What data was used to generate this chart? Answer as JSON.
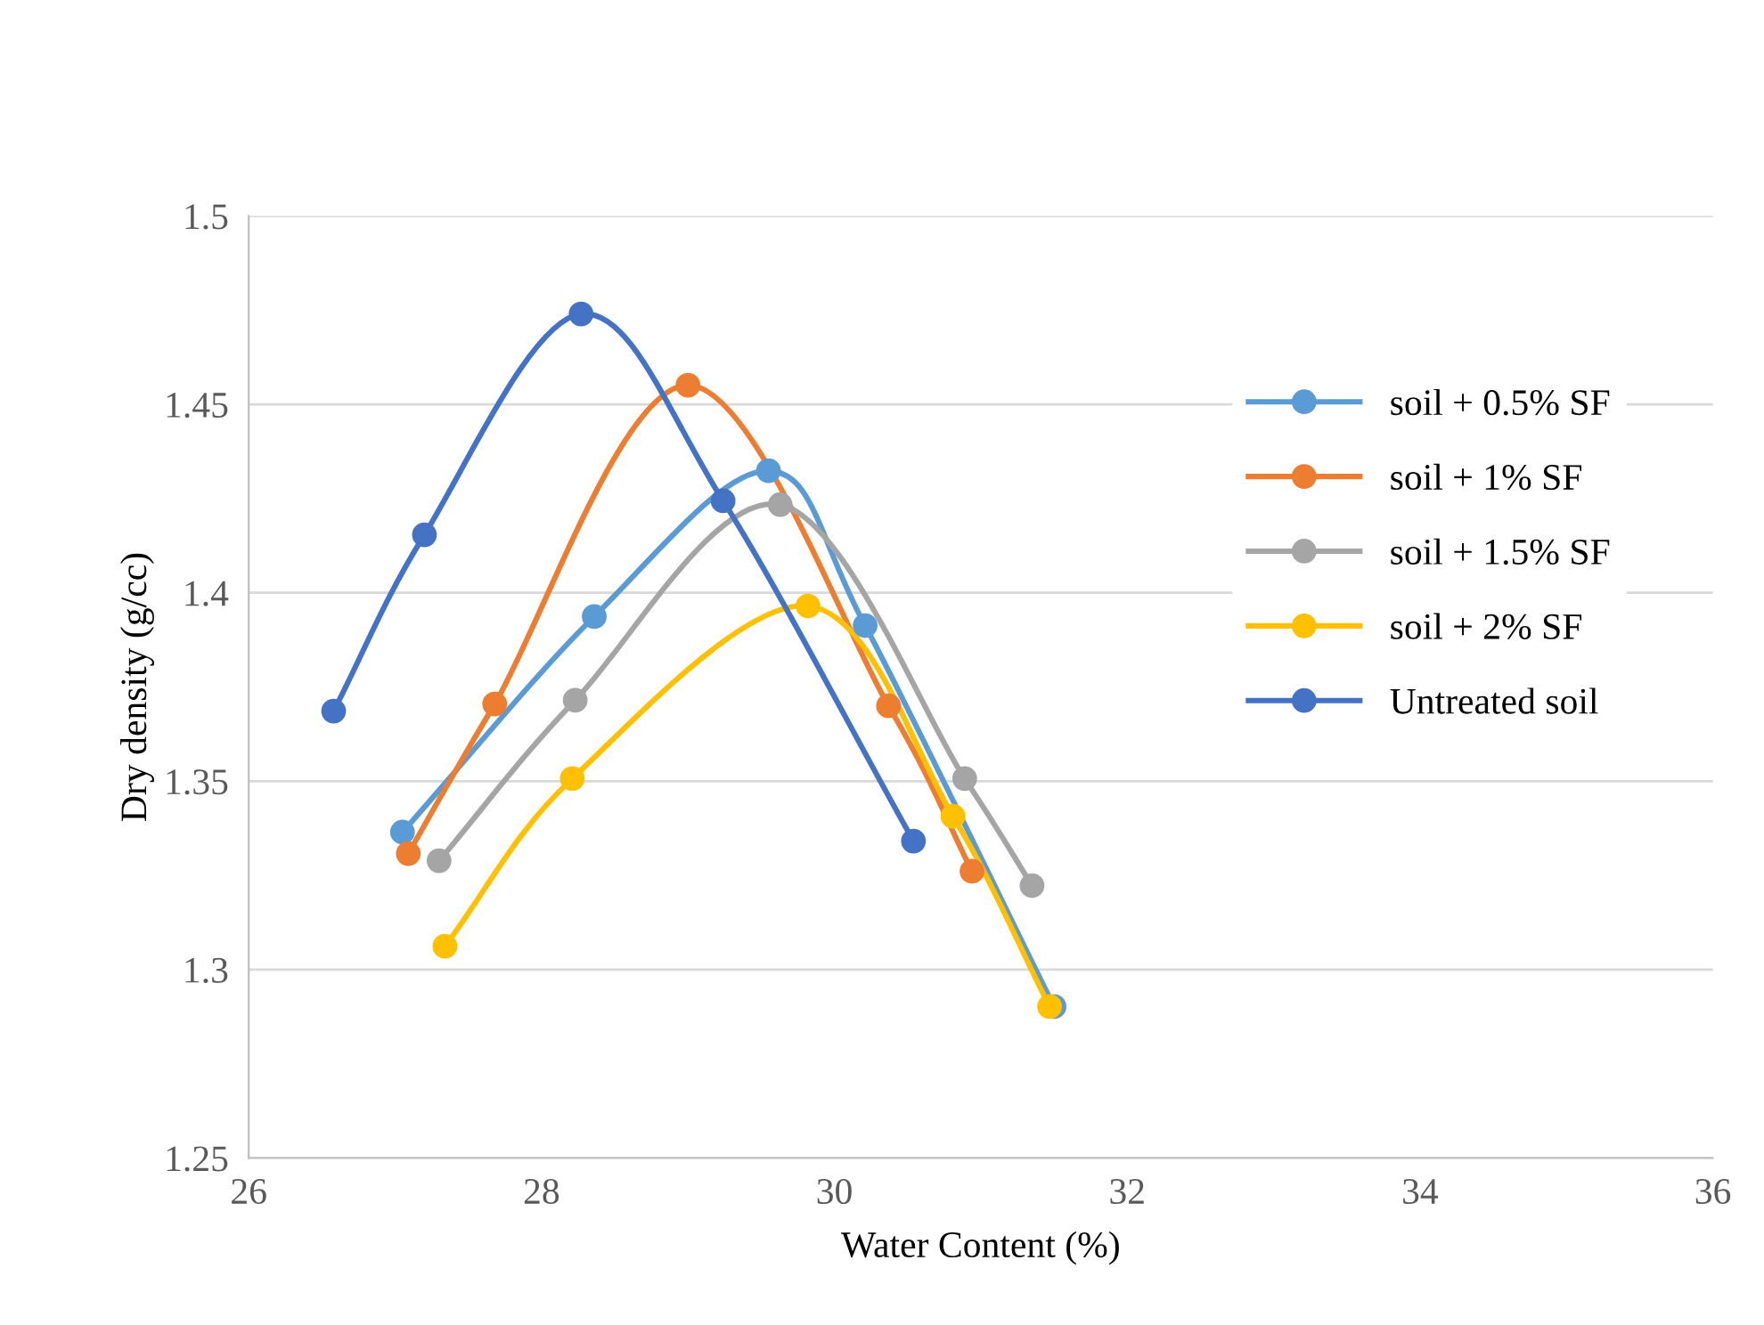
{
  "chart_data": {
    "type": "line",
    "xlabel": "Water Content (%)",
    "ylabel": "Dry density (g/cc)",
    "xlim": [
      26,
      36
    ],
    "xticks": [
      26,
      28,
      30,
      32,
      34,
      36
    ],
    "ylim": [
      1.25,
      1.5
    ],
    "yticks": [
      1.25,
      1.3,
      1.35,
      1.4,
      1.45,
      1.5
    ],
    "grid": "y",
    "legend": "right",
    "marker": "circle",
    "line_style": "solid",
    "series": [
      {
        "name": "soil + 0.5% SF",
        "color": "#5b9bd5",
        "x": [
          27.05,
          28.36,
          29.55,
          30.21,
          31.5
        ],
        "values": [
          1.3365,
          1.3937,
          1.4324,
          1.3913,
          1.2902
        ]
      },
      {
        "name": "soil + 1% SF",
        "color": "#ed7d31",
        "x": [
          27.09,
          27.68,
          29.0,
          30.37,
          30.94
        ],
        "values": [
          1.3308,
          1.3705,
          1.4551,
          1.37,
          1.3261
        ]
      },
      {
        "name": "soil + 1.5% SF",
        "color": "#a5a5a5",
        "x": [
          27.3,
          28.23,
          29.63,
          30.89,
          31.35
        ],
        "values": [
          1.3289,
          1.3715,
          1.4234,
          1.3507,
          1.3223
        ]
      },
      {
        "name": "soil + 2% SF",
        "color": "#ffc000",
        "x": [
          27.34,
          28.21,
          29.82,
          30.81,
          31.47
        ],
        "values": [
          1.3062,
          1.3507,
          1.3965,
          1.3407,
          1.2902
        ]
      },
      {
        "name": "Untreated soil",
        "color": "#4472c4",
        "x": [
          26.58,
          27.2,
          28.27,
          29.24,
          30.54
        ],
        "values": [
          1.3686,
          1.4154,
          1.474,
          1.4244,
          1.3341
        ]
      }
    ]
  }
}
